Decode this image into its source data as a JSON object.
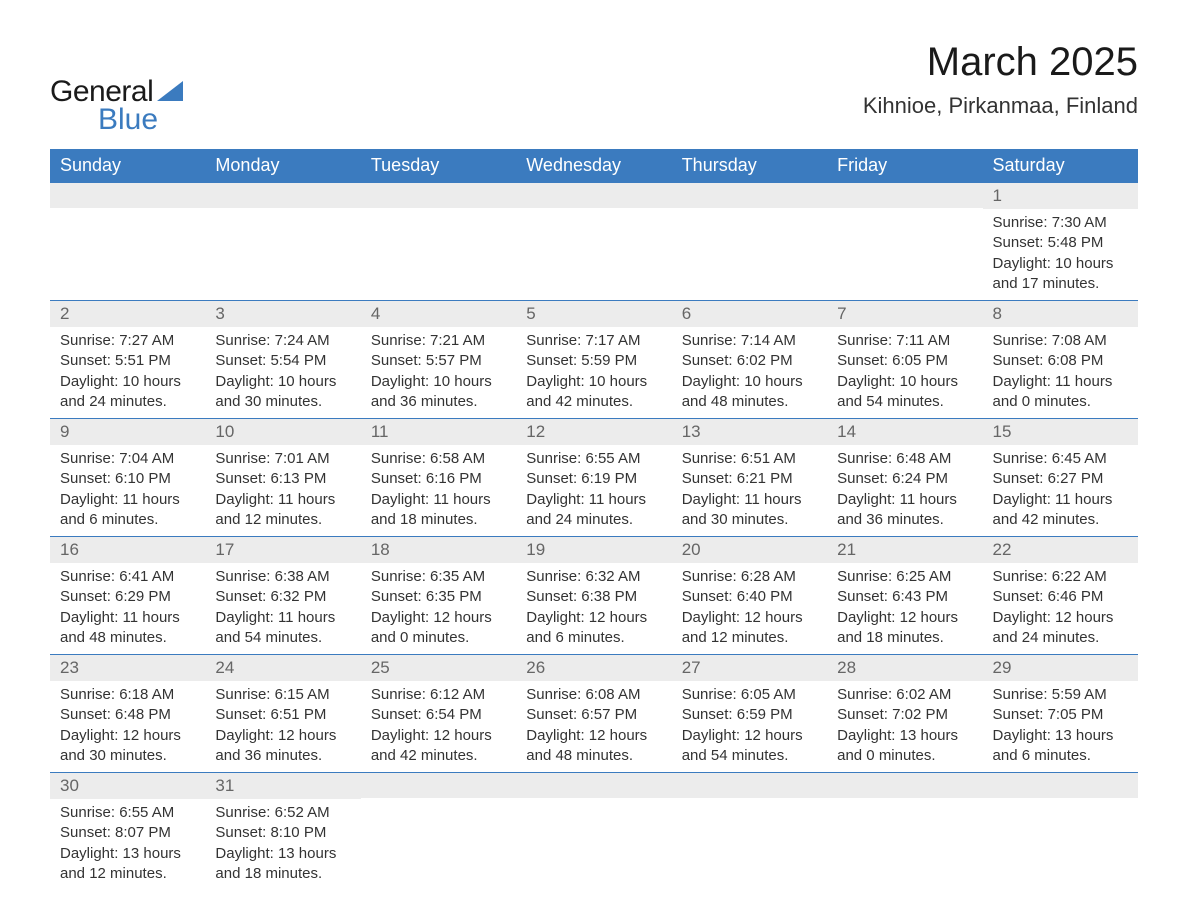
{
  "logo": {
    "word1": "General",
    "word2": "Blue"
  },
  "title": "March 2025",
  "location": "Kihnioe, Pirkanmaa, Finland",
  "colors": {
    "header_bg": "#3b7bbf",
    "header_fg": "#ffffff",
    "daynum_bg": "#ececec",
    "text": "#333333",
    "border": "#3b7bbf"
  },
  "weekdays": [
    "Sunday",
    "Monday",
    "Tuesday",
    "Wednesday",
    "Thursday",
    "Friday",
    "Saturday"
  ],
  "weeks": [
    [
      null,
      null,
      null,
      null,
      null,
      null,
      {
        "n": "1",
        "sunrise": "7:30 AM",
        "sunset": "5:48 PM",
        "dl1": "10 hours",
        "dl2": "and 17 minutes."
      }
    ],
    [
      {
        "n": "2",
        "sunrise": "7:27 AM",
        "sunset": "5:51 PM",
        "dl1": "10 hours",
        "dl2": "and 24 minutes."
      },
      {
        "n": "3",
        "sunrise": "7:24 AM",
        "sunset": "5:54 PM",
        "dl1": "10 hours",
        "dl2": "and 30 minutes."
      },
      {
        "n": "4",
        "sunrise": "7:21 AM",
        "sunset": "5:57 PM",
        "dl1": "10 hours",
        "dl2": "and 36 minutes."
      },
      {
        "n": "5",
        "sunrise": "7:17 AM",
        "sunset": "5:59 PM",
        "dl1": "10 hours",
        "dl2": "and 42 minutes."
      },
      {
        "n": "6",
        "sunrise": "7:14 AM",
        "sunset": "6:02 PM",
        "dl1": "10 hours",
        "dl2": "and 48 minutes."
      },
      {
        "n": "7",
        "sunrise": "7:11 AM",
        "sunset": "6:05 PM",
        "dl1": "10 hours",
        "dl2": "and 54 minutes."
      },
      {
        "n": "8",
        "sunrise": "7:08 AM",
        "sunset": "6:08 PM",
        "dl1": "11 hours",
        "dl2": "and 0 minutes."
      }
    ],
    [
      {
        "n": "9",
        "sunrise": "7:04 AM",
        "sunset": "6:10 PM",
        "dl1": "11 hours",
        "dl2": "and 6 minutes."
      },
      {
        "n": "10",
        "sunrise": "7:01 AM",
        "sunset": "6:13 PM",
        "dl1": "11 hours",
        "dl2": "and 12 minutes."
      },
      {
        "n": "11",
        "sunrise": "6:58 AM",
        "sunset": "6:16 PM",
        "dl1": "11 hours",
        "dl2": "and 18 minutes."
      },
      {
        "n": "12",
        "sunrise": "6:55 AM",
        "sunset": "6:19 PM",
        "dl1": "11 hours",
        "dl2": "and 24 minutes."
      },
      {
        "n": "13",
        "sunrise": "6:51 AM",
        "sunset": "6:21 PM",
        "dl1": "11 hours",
        "dl2": "and 30 minutes."
      },
      {
        "n": "14",
        "sunrise": "6:48 AM",
        "sunset": "6:24 PM",
        "dl1": "11 hours",
        "dl2": "and 36 minutes."
      },
      {
        "n": "15",
        "sunrise": "6:45 AM",
        "sunset": "6:27 PM",
        "dl1": "11 hours",
        "dl2": "and 42 minutes."
      }
    ],
    [
      {
        "n": "16",
        "sunrise": "6:41 AM",
        "sunset": "6:29 PM",
        "dl1": "11 hours",
        "dl2": "and 48 minutes."
      },
      {
        "n": "17",
        "sunrise": "6:38 AM",
        "sunset": "6:32 PM",
        "dl1": "11 hours",
        "dl2": "and 54 minutes."
      },
      {
        "n": "18",
        "sunrise": "6:35 AM",
        "sunset": "6:35 PM",
        "dl1": "12 hours",
        "dl2": "and 0 minutes."
      },
      {
        "n": "19",
        "sunrise": "6:32 AM",
        "sunset": "6:38 PM",
        "dl1": "12 hours",
        "dl2": "and 6 minutes."
      },
      {
        "n": "20",
        "sunrise": "6:28 AM",
        "sunset": "6:40 PM",
        "dl1": "12 hours",
        "dl2": "and 12 minutes."
      },
      {
        "n": "21",
        "sunrise": "6:25 AM",
        "sunset": "6:43 PM",
        "dl1": "12 hours",
        "dl2": "and 18 minutes."
      },
      {
        "n": "22",
        "sunrise": "6:22 AM",
        "sunset": "6:46 PM",
        "dl1": "12 hours",
        "dl2": "and 24 minutes."
      }
    ],
    [
      {
        "n": "23",
        "sunrise": "6:18 AM",
        "sunset": "6:48 PM",
        "dl1": "12 hours",
        "dl2": "and 30 minutes."
      },
      {
        "n": "24",
        "sunrise": "6:15 AM",
        "sunset": "6:51 PM",
        "dl1": "12 hours",
        "dl2": "and 36 minutes."
      },
      {
        "n": "25",
        "sunrise": "6:12 AM",
        "sunset": "6:54 PM",
        "dl1": "12 hours",
        "dl2": "and 42 minutes."
      },
      {
        "n": "26",
        "sunrise": "6:08 AM",
        "sunset": "6:57 PM",
        "dl1": "12 hours",
        "dl2": "and 48 minutes."
      },
      {
        "n": "27",
        "sunrise": "6:05 AM",
        "sunset": "6:59 PM",
        "dl1": "12 hours",
        "dl2": "and 54 minutes."
      },
      {
        "n": "28",
        "sunrise": "6:02 AM",
        "sunset": "7:02 PM",
        "dl1": "13 hours",
        "dl2": "and 0 minutes."
      },
      {
        "n": "29",
        "sunrise": "5:59 AM",
        "sunset": "7:05 PM",
        "dl1": "13 hours",
        "dl2": "and 6 minutes."
      }
    ],
    [
      {
        "n": "30",
        "sunrise": "6:55 AM",
        "sunset": "8:07 PM",
        "dl1": "13 hours",
        "dl2": "and 12 minutes."
      },
      {
        "n": "31",
        "sunrise": "6:52 AM",
        "sunset": "8:10 PM",
        "dl1": "13 hours",
        "dl2": "and 18 minutes."
      },
      null,
      null,
      null,
      null,
      null
    ]
  ],
  "labels": {
    "sunrise": "Sunrise: ",
    "sunset": "Sunset: ",
    "daylight": "Daylight: "
  }
}
